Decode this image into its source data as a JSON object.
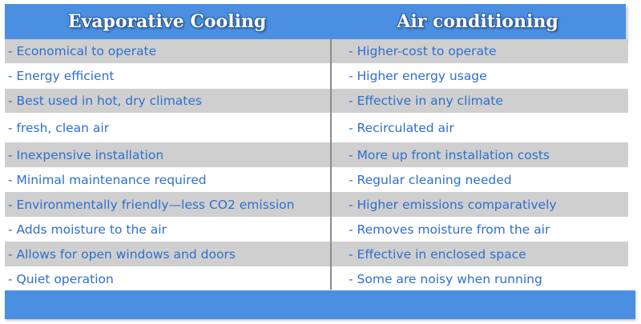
{
  "header": {
    "left_title": "Evaporative Cooling",
    "right_title": "Air conditioning"
  },
  "rows": [
    {
      "left": "- Economical to operate",
      "right": "- Higher-cost to operate"
    },
    {
      "left": "- Energy efficient",
      "right": "- Higher energy usage"
    },
    {
      "left": "- Best used in hot, dry climates",
      "right": "- Effective in any climate"
    },
    {
      "left": "- fresh, clean air",
      "right": "- Recirculated air"
    },
    {
      "left": "- Inexpensive installation",
      "right": "- More up front installation costs"
    },
    {
      "left": "- Minimal maintenance required",
      "right": "- Regular cleaning needed"
    },
    {
      "left": "- Environmentally friendly—less CO2 emission",
      "right": "- Higher emissions comparatively"
    },
    {
      "left": "- Adds moisture to the air",
      "right": "- Removes moisture from the air"
    },
    {
      "left": "- Allows for open windows and doors",
      "right": "- Effective in enclosed space"
    },
    {
      "left": "- Quiet operation",
      "right": "- Some are noisy when running"
    }
  ],
  "colors": {
    "header_bg": "#4a8fe2",
    "text": "#2e6fce",
    "shaded_row": "#cfcfcf"
  }
}
